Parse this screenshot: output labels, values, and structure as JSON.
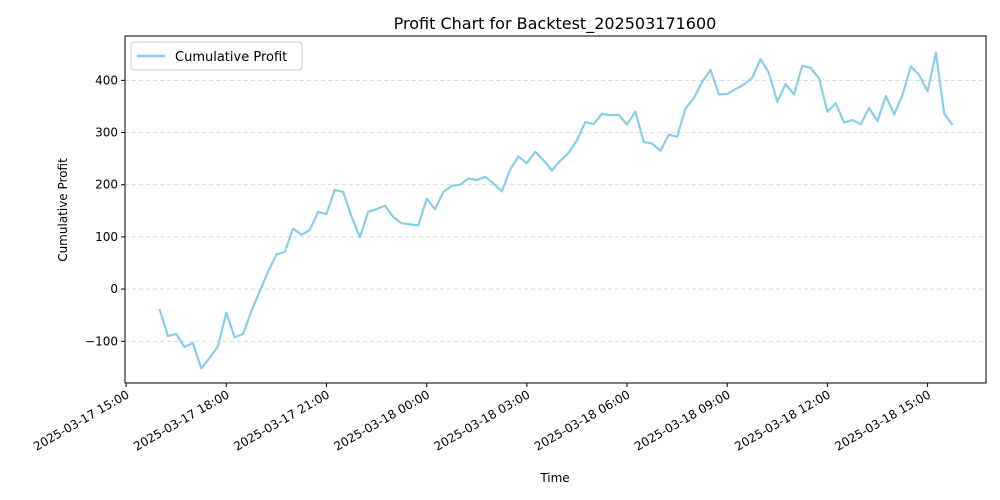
{
  "chart_data": {
    "type": "line",
    "title": "Profit Chart for Backtest_202503171600",
    "xlabel": "Time",
    "ylabel": "Cumulative Profit",
    "xlim": [
      "2025-03-17 14:58",
      "2025-03-18 16:45"
    ],
    "ylim": [
      -180,
      485
    ],
    "x_ticks": [
      "2025-03-17 15:00",
      "2025-03-17 18:00",
      "2025-03-17 21:00",
      "2025-03-18 00:00",
      "2025-03-18 03:00",
      "2025-03-18 06:00",
      "2025-03-18 09:00",
      "2025-03-18 12:00",
      "2025-03-18 15:00"
    ],
    "y_ticks": [
      -100,
      0,
      100,
      200,
      300,
      400
    ],
    "grid": "horizontal dashed",
    "legend_position": "upper-left",
    "series": [
      {
        "name": "Cumulative Profit",
        "color": "#87CEEB",
        "x": [
          "2025-03-17 16:00",
          "2025-03-17 16:15",
          "2025-03-17 16:30",
          "2025-03-17 16:45",
          "2025-03-17 17:00",
          "2025-03-17 17:15",
          "2025-03-17 17:30",
          "2025-03-17 17:45",
          "2025-03-17 18:00",
          "2025-03-17 18:15",
          "2025-03-17 18:30",
          "2025-03-17 18:45",
          "2025-03-17 19:00",
          "2025-03-17 19:15",
          "2025-03-17 19:30",
          "2025-03-17 19:45",
          "2025-03-17 20:00",
          "2025-03-17 20:15",
          "2025-03-17 20:30",
          "2025-03-17 20:45",
          "2025-03-17 21:00",
          "2025-03-17 21:15",
          "2025-03-17 21:30",
          "2025-03-17 21:45",
          "2025-03-17 22:00",
          "2025-03-17 22:15",
          "2025-03-17 22:30",
          "2025-03-17 22:45",
          "2025-03-17 23:00",
          "2025-03-17 23:15",
          "2025-03-17 23:30",
          "2025-03-17 23:45",
          "2025-03-18 00:00",
          "2025-03-18 00:15",
          "2025-03-18 00:30",
          "2025-03-18 00:45",
          "2025-03-18 01:00",
          "2025-03-18 01:15",
          "2025-03-18 01:30",
          "2025-03-18 01:45",
          "2025-03-18 02:00",
          "2025-03-18 02:15",
          "2025-03-18 02:30",
          "2025-03-18 02:45",
          "2025-03-18 03:00",
          "2025-03-18 03:15",
          "2025-03-18 03:30",
          "2025-03-18 03:45",
          "2025-03-18 04:00",
          "2025-03-18 04:15",
          "2025-03-18 04:30",
          "2025-03-18 04:45",
          "2025-03-18 05:00",
          "2025-03-18 05:15",
          "2025-03-18 05:30",
          "2025-03-18 05:45",
          "2025-03-18 06:00",
          "2025-03-18 06:15",
          "2025-03-18 06:30",
          "2025-03-18 06:45",
          "2025-03-18 07:00",
          "2025-03-18 07:15",
          "2025-03-18 07:30",
          "2025-03-18 07:45",
          "2025-03-18 08:00",
          "2025-03-18 08:15",
          "2025-03-18 08:30",
          "2025-03-18 08:45",
          "2025-03-18 09:00",
          "2025-03-18 09:15",
          "2025-03-18 09:30",
          "2025-03-18 09:45",
          "2025-03-18 10:00",
          "2025-03-18 10:15",
          "2025-03-18 10:30",
          "2025-03-18 10:45",
          "2025-03-18 11:00",
          "2025-03-18 11:15",
          "2025-03-18 11:30",
          "2025-03-18 11:45",
          "2025-03-18 12:00",
          "2025-03-18 12:15",
          "2025-03-18 12:30",
          "2025-03-18 12:45",
          "2025-03-18 13:00",
          "2025-03-18 13:15",
          "2025-03-18 13:30",
          "2025-03-18 13:45",
          "2025-03-18 14:00",
          "2025-03-18 14:15",
          "2025-03-18 14:30",
          "2025-03-18 14:45",
          "2025-03-18 15:00",
          "2025-03-18 15:15",
          "2025-03-18 15:30",
          "2025-03-18 15:45"
        ],
        "values": [
          -38,
          -90,
          -86,
          -111,
          -103,
          -152,
          -132,
          -110,
          -45,
          -92,
          -86,
          -43,
          -4,
          33,
          66,
          71,
          116,
          104,
          113,
          148,
          144,
          190,
          186,
          139,
          99,
          148,
          153,
          160,
          138,
          126,
          124,
          122,
          173,
          153,
          186,
          198,
          200,
          212,
          209,
          215,
          203,
          187,
          229,
          254,
          241,
          263,
          247,
          227,
          246,
          261,
          285,
          320,
          316,
          336,
          333,
          334,
          315,
          340,
          282,
          279,
          265,
          296,
          292,
          346,
          366,
          397,
          420,
          373,
          374,
          383,
          392,
          405,
          441,
          414,
          359,
          393,
          373,
          428,
          424,
          404,
          340,
          356,
          319,
          324,
          316,
          347,
          322,
          370,
          335,
          372,
          427,
          410,
          379,
          453,
          336,
          314
        ]
      }
    ]
  }
}
